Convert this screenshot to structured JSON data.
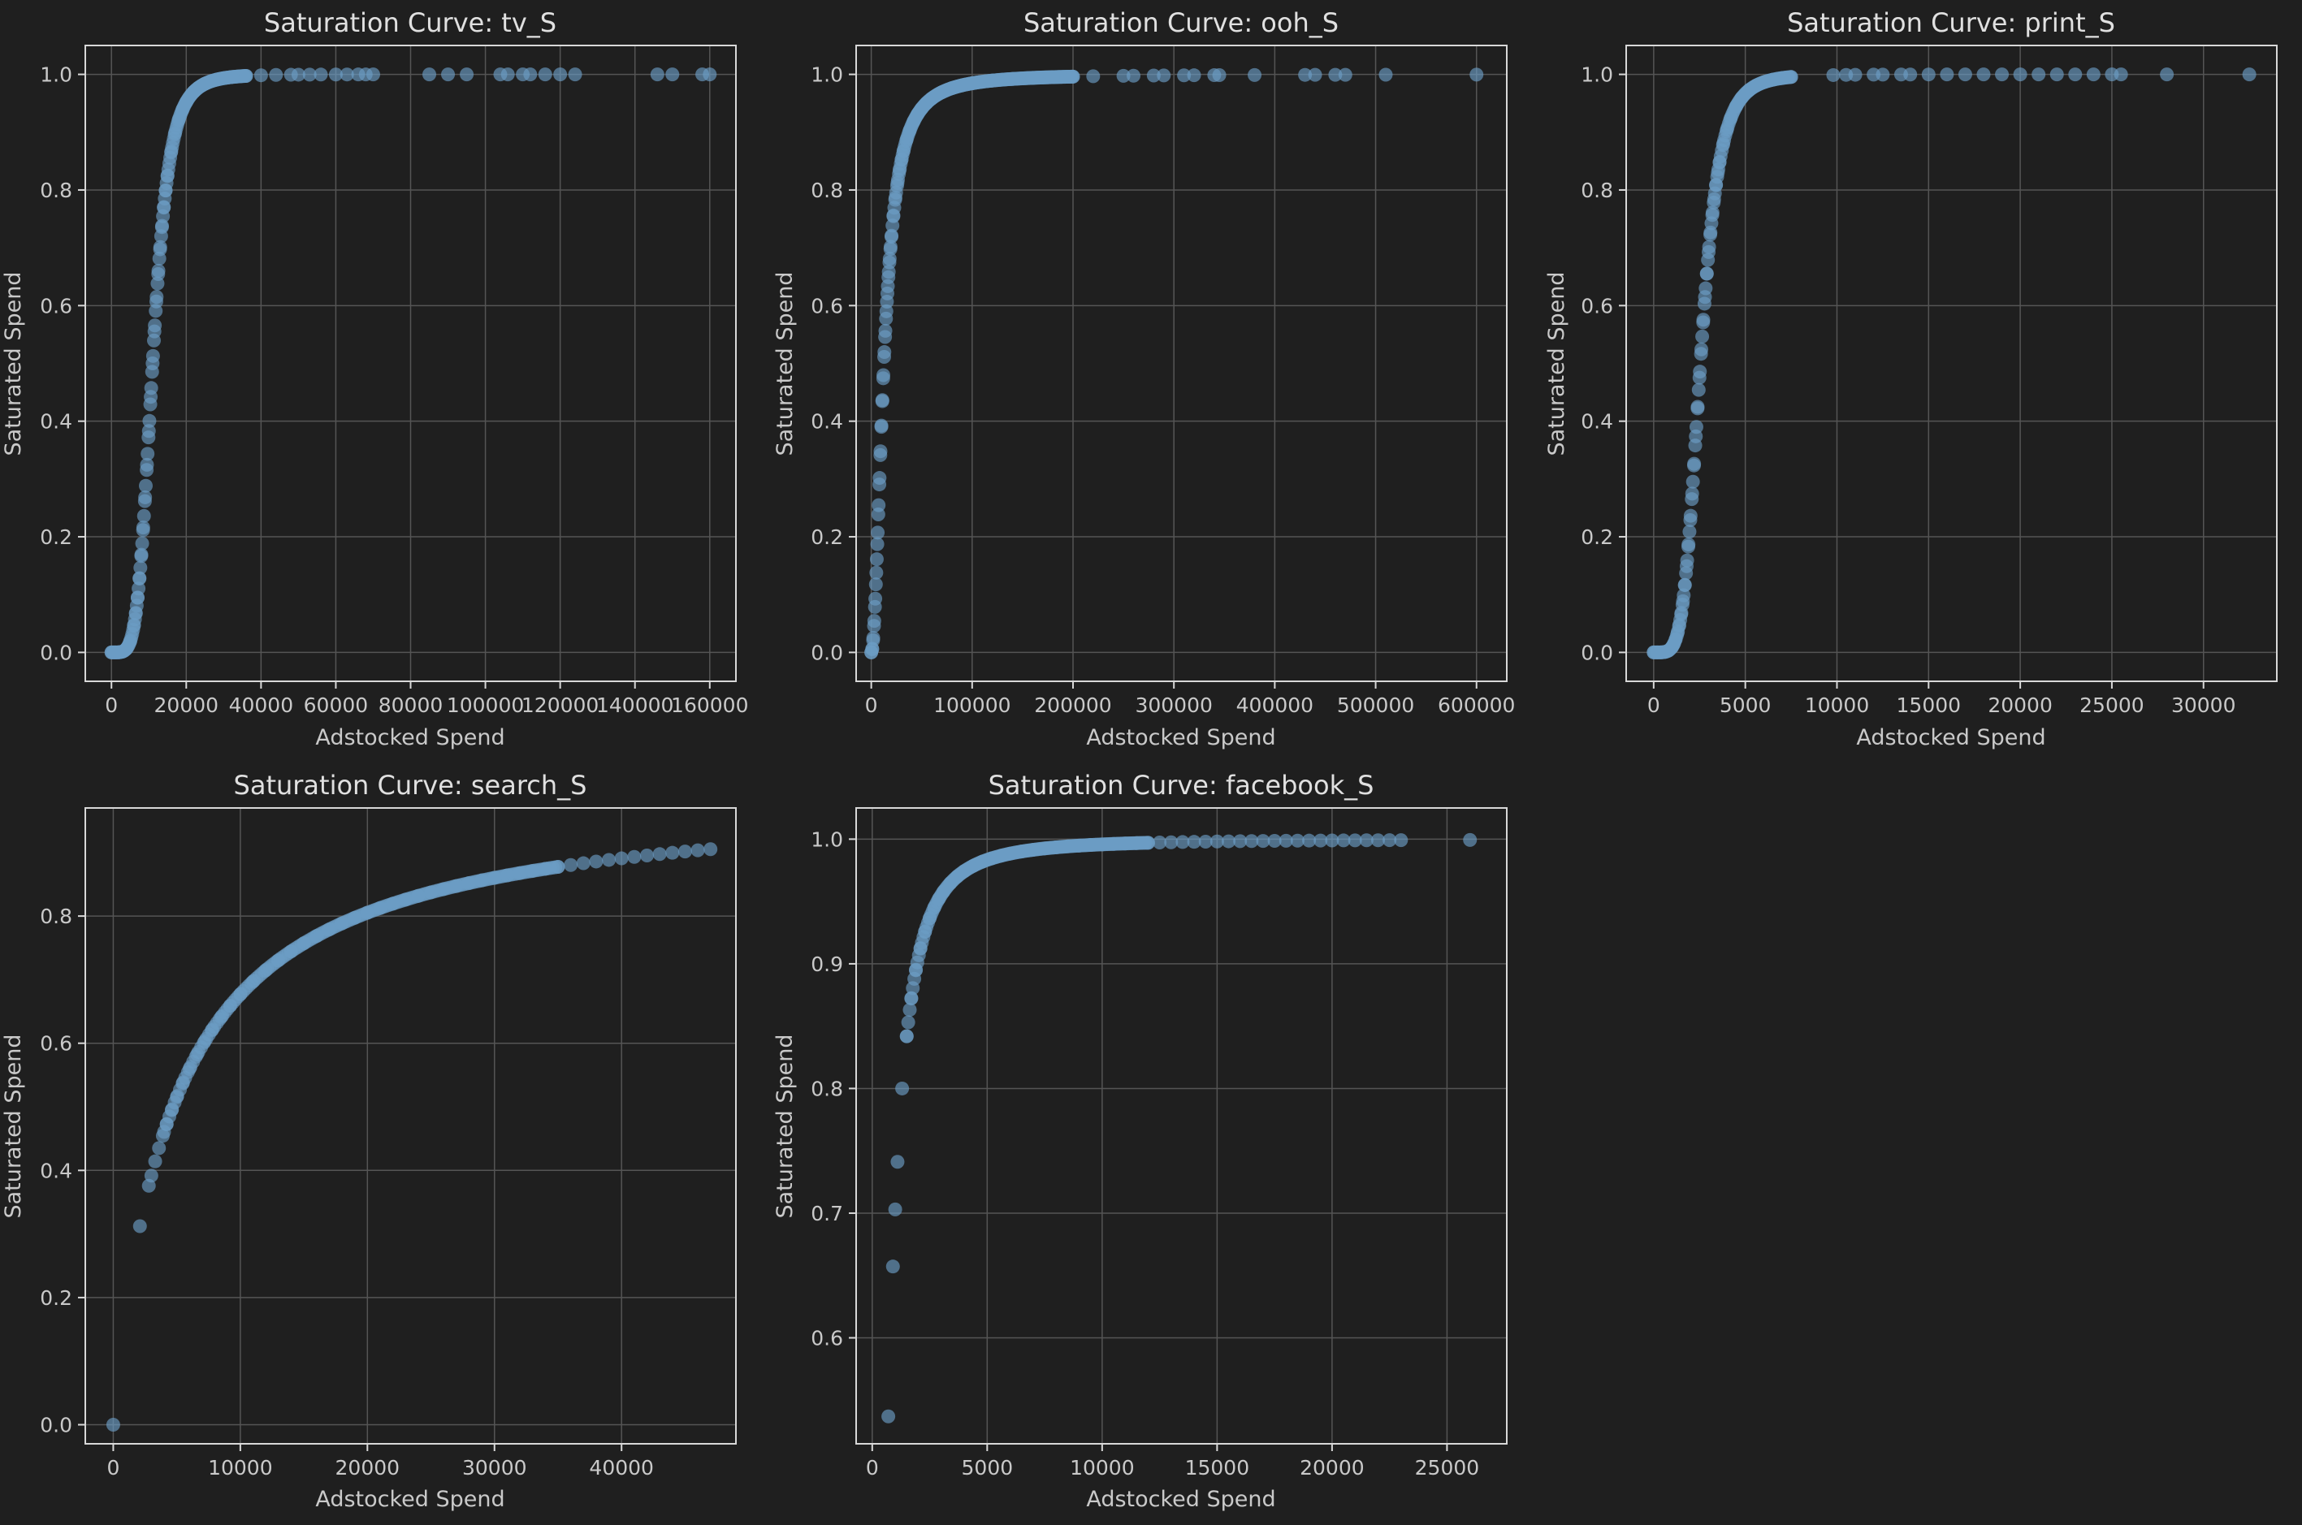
{
  "colors": {
    "background": "#1f1f1f",
    "marker": "#6b9dc4",
    "grid": "#555555",
    "text": "#c9c9c9"
  },
  "chart_data": [
    {
      "id": "tv",
      "type": "scatter",
      "title": "Saturation Curve: tv_S",
      "xlabel": "Adstocked Spend",
      "ylabel": "Saturated Spend",
      "xlim": [
        -7000,
        167000
      ],
      "ylim": [
        -0.05,
        1.05
      ],
      "grid": true,
      "xticks": [
        0,
        20000,
        40000,
        60000,
        80000,
        100000,
        120000,
        140000,
        160000
      ],
      "yticks": [
        0.0,
        0.2,
        0.4,
        0.6,
        0.8,
        1.0
      ],
      "ytick_decimals": 1,
      "curve": {
        "kind": "hill",
        "params": {
          "k": 11000,
          "n": 5
        },
        "dense": {
          "count": 150,
          "min": 0,
          "max": 36000
        }
      },
      "points_x": [
        0,
        1000,
        2000,
        3000,
        4000,
        5000,
        6000,
        6500,
        7000,
        7500,
        8000,
        8500,
        9000,
        9500,
        10000,
        10500,
        11000,
        11500,
        12000,
        12500,
        13000,
        13500,
        14000,
        14500,
        15000,
        16000,
        17000,
        18000,
        19000,
        20000,
        22000,
        25000,
        28000,
        32000,
        36000,
        40000,
        44000,
        48000,
        50000,
        53000,
        56000,
        60000,
        63000,
        66000,
        68000,
        70000,
        85000,
        90000,
        95000,
        104000,
        106000,
        110000,
        112000,
        116000,
        120000,
        124000,
        146000,
        150000,
        158000,
        160000
      ]
    },
    {
      "id": "ooh",
      "type": "scatter",
      "title": "Saturation Curve: ooh_S",
      "xlabel": "Adstocked Spend",
      "ylabel": "Saturated Spend",
      "xlim": [
        -15000,
        630000
      ],
      "ylim": [
        -0.05,
        1.05
      ],
      "grid": true,
      "xticks": [
        0,
        100000,
        200000,
        300000,
        400000,
        500000,
        600000
      ],
      "yticks": [
        0.0,
        0.2,
        0.4,
        0.6,
        0.8,
        1.0
      ],
      "ytick_decimals": 1,
      "curve": {
        "kind": "hill",
        "params": {
          "k": 12500,
          "n": 2
        },
        "dense": {
          "count": 220,
          "min": 0,
          "max": 200000
        }
      },
      "points_x": [
        0,
        1000,
        2000,
        3000,
        4000,
        5000,
        6000,
        7000,
        8000,
        9000,
        10000,
        11000,
        12000,
        13000,
        14000,
        15000,
        16000,
        17000,
        18000,
        19000,
        20000,
        22000,
        24000,
        26000,
        28000,
        30000,
        32000,
        35000,
        38000,
        42000,
        46000,
        50000,
        55000,
        60000,
        70000,
        80000,
        90000,
        100000,
        120000,
        140000,
        160000,
        180000,
        200000,
        220000,
        250000,
        260000,
        280000,
        290000,
        310000,
        320000,
        340000,
        345000,
        380000,
        430000,
        440000,
        460000,
        470000,
        510000,
        600000
      ]
    },
    {
      "id": "print",
      "type": "scatter",
      "title": "Saturation Curve: print_S",
      "xlabel": "Adstocked Spend",
      "ylabel": "Saturated Spend",
      "xlim": [
        -1500,
        34000
      ],
      "ylim": [
        -0.05,
        1.05
      ],
      "grid": true,
      "xticks": [
        0,
        5000,
        10000,
        15000,
        20000,
        25000,
        30000
      ],
      "yticks": [
        0.0,
        0.2,
        0.4,
        0.6,
        0.8,
        1.0
      ],
      "ytick_decimals": 1,
      "curve": {
        "kind": "hill",
        "params": {
          "k": 2550,
          "n": 5
        },
        "dense": {
          "count": 120,
          "min": 0,
          "max": 7500
        }
      },
      "points_x": [
        0,
        200,
        400,
        600,
        800,
        1000,
        1100,
        1200,
        1300,
        1400,
        1500,
        1600,
        1700,
        1800,
        1900,
        2000,
        2100,
        2200,
        2300,
        2400,
        2500,
        2600,
        2700,
        2800,
        2900,
        3000,
        3100,
        3200,
        3300,
        3400,
        3500,
        3600,
        3800,
        4000,
        4200,
        4500,
        4800,
        5200,
        5600,
        6000,
        6500,
        7000,
        7500,
        9800,
        10500,
        11000,
        12000,
        12500,
        13500,
        14000,
        15000,
        16000,
        17000,
        18000,
        19000,
        20000,
        21000,
        22000,
        23000,
        24000,
        25000,
        25500,
        28000,
        32500
      ]
    },
    {
      "id": "search",
      "type": "scatter",
      "title": "Saturation Curve: search_S",
      "xlabel": "Adstocked Spend",
      "ylabel": "Saturated Spend",
      "xlim": [
        -2200,
        49000
      ],
      "ylim": [
        -0.03,
        0.97
      ],
      "grid": true,
      "xticks": [
        0,
        10000,
        20000,
        30000,
        40000
      ],
      "yticks": [
        0.0,
        0.2,
        0.4,
        0.6,
        0.8
      ],
      "ytick_decimals": 1,
      "curve": {
        "kind": "hill_scaled",
        "params": {
          "k": 5000,
          "n": 0.95,
          "a": 1
        },
        "dense": {
          "count": 150,
          "min": 4000,
          "max": 35000
        }
      },
      "points_x": [
        0,
        2100,
        2800,
        3000,
        3300,
        3600,
        3900,
        4200,
        4600,
        5000,
        5500,
        6000,
        6600,
        7200,
        7800,
        8500,
        9200,
        10000,
        11000,
        12000,
        13000,
        14000,
        15000,
        16000,
        17000,
        18000,
        19000,
        20000,
        21000,
        22000,
        23000,
        24000,
        25000,
        26000,
        27000,
        28000,
        29000,
        30000,
        31000,
        32000,
        33000,
        34000,
        35000,
        36000,
        37000,
        38000,
        39000,
        40000,
        41000,
        42000,
        43000,
        44000,
        45000,
        46000,
        47000
      ]
    },
    {
      "id": "facebook",
      "type": "scatter",
      "title": "Saturation Curve: facebook_S",
      "xlabel": "Adstocked Spend",
      "ylabel": "Saturated Spend",
      "xlim": [
        -700,
        27600
      ],
      "ylim": [
        0.515,
        1.025
      ],
      "grid": true,
      "xticks": [
        0,
        5000,
        10000,
        15000,
        20000,
        25000
      ],
      "yticks": [
        0.6,
        0.7,
        0.8,
        0.9,
        1.0
      ],
      "ytick_decimals": 1,
      "curve": {
        "kind": "hill",
        "params": {
          "k": 650,
          "n": 2
        },
        "dense": {
          "count": 160,
          "min": 1500,
          "max": 12000
        }
      },
      "points_x": [
        500,
        700,
        900,
        1000,
        1100,
        1300,
        1500,
        1700,
        1900,
        2100,
        2300,
        2500,
        2700,
        2900,
        3100,
        3400,
        3700,
        4000,
        4400,
        4800,
        5200,
        5600,
        6000,
        6500,
        7000,
        7500,
        8000,
        8500,
        9000,
        9500,
        10000,
        10500,
        11000,
        11500,
        12000,
        12500,
        13000,
        13500,
        14000,
        14500,
        15000,
        15500,
        16000,
        16500,
        17000,
        17500,
        18000,
        18500,
        19000,
        19500,
        20000,
        20500,
        21000,
        21500,
        22000,
        22500,
        23000,
        26000
      ]
    }
  ]
}
